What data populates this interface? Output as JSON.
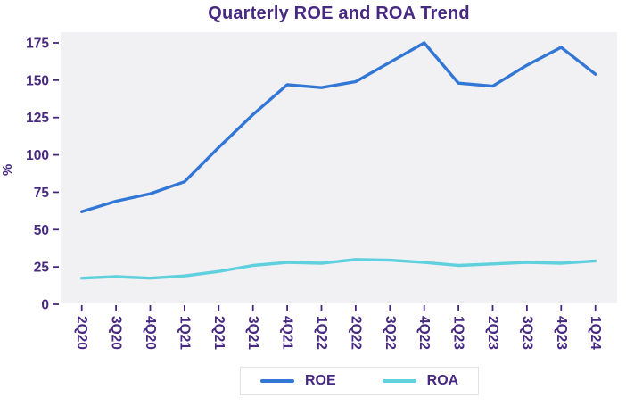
{
  "title": "Quarterly ROE and ROA Trend",
  "colors": {
    "text": "#482981",
    "plot_background": "#f1f1f3",
    "roe_line": "#3377d6",
    "roa_line": "#5fd0dd",
    "legend_border": "#e1e1e6"
  },
  "chart_data": {
    "type": "line",
    "title": "Quarterly ROE and ROA Trend",
    "xlabel": "",
    "ylabel": "%",
    "ylim": [
      0,
      183
    ],
    "yticks": [
      0,
      25,
      50,
      75,
      100,
      125,
      150,
      175
    ],
    "grid": false,
    "plot_background": "#f1f1f3",
    "legend_position": "bottom-center",
    "x_tick_rotation_deg": 90,
    "categories": [
      "2Q20",
      "3Q20",
      "4Q20",
      "1Q21",
      "2Q21",
      "3Q21",
      "4Q21",
      "1Q22",
      "2Q22",
      "3Q22",
      "4Q22",
      "1Q23",
      "2Q23",
      "3Q23",
      "4Q23",
      "1Q24"
    ],
    "series": [
      {
        "name": "ROE",
        "color": "#3377d6",
        "values": [
          62,
          69,
          74,
          82,
          105,
          127,
          147,
          145,
          149,
          162,
          175,
          148,
          146,
          160,
          172,
          154
        ]
      },
      {
        "name": "ROA",
        "color": "#5fd0dd",
        "values": [
          17.5,
          18.5,
          17.5,
          19,
          22,
          26,
          28,
          27.5,
          30,
          29.5,
          28,
          26,
          27,
          28,
          27.5,
          29
        ]
      }
    ]
  }
}
